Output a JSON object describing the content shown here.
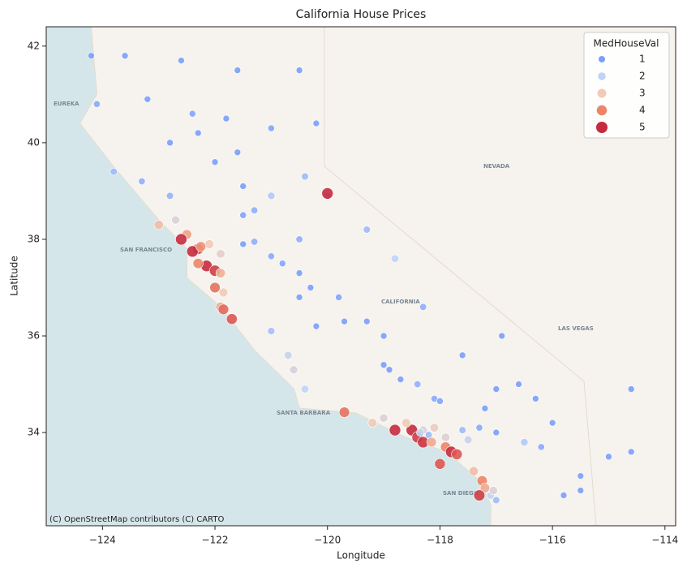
{
  "chart_data": {
    "type": "scatter",
    "title": "California House Prices",
    "x_label": "Longitude",
    "y_label": "Latitude",
    "xlim": [
      -125.0,
      -113.81
    ],
    "ylim": [
      32.07,
      42.4
    ],
    "xticks": [
      {
        "value": -124,
        "label": "−124"
      },
      {
        "value": -122,
        "label": "−122"
      },
      {
        "value": -120,
        "label": "−120"
      },
      {
        "value": -118,
        "label": "−118"
      },
      {
        "value": -116,
        "label": "−116"
      },
      {
        "value": -114,
        "label": "−114"
      }
    ],
    "yticks": [
      34,
      36,
      38,
      40,
      42
    ],
    "legend_title": "MedHouseVal",
    "legend_position": "upper right",
    "hue_legend": [
      1,
      2,
      3,
      4,
      5
    ],
    "hue_colors": [
      "#7b9ff9",
      "#c0d4f5",
      "#f2cbb7",
      "#ee8468",
      "#c62c3f"
    ],
    "attribution": "(C) OpenStreetMap contributors (C) CARTO",
    "map_labels": [
      "EUREKA",
      "NEVADA",
      "SAN FRANCISCO",
      "CALIFORNIA",
      "LAS VEGAS",
      "SANTA BARBARA",
      "SAN DIEGO"
    ],
    "series": [
      {
        "name": "MedHouseVal",
        "x": [
          -124.1,
          -123.8,
          -123.6,
          -124.2,
          -123.2,
          -122.4,
          -122.3,
          -121.6,
          -122.0,
          -121.5,
          -121.3,
          -121.5,
          -121.0,
          -120.4,
          -120.0,
          -120.0,
          -122.8,
          -122.7,
          -122.5,
          -122.3,
          -122.4,
          -122.15,
          -122.0,
          -121.9,
          -121.85,
          -121.9,
          -121.85,
          -121.7,
          -122.1,
          -122.3,
          -121.9,
          -121.3,
          -121.0,
          -120.5,
          -119.8,
          -119.7,
          -119.3,
          -119.0,
          -118.9,
          -120.6,
          -120.7,
          -120.4,
          -119.7,
          -119.2,
          -118.8,
          -118.5,
          -118.4,
          -118.3,
          -118.3,
          -118.2,
          -118.1,
          -117.9,
          -117.8,
          -117.7,
          -117.4,
          -117.25,
          -117.2,
          -117.1,
          -117.0,
          -117.3,
          -117.3,
          -117.0,
          -116.5,
          -116.2,
          -115.5,
          -115.0,
          -114.6,
          -114.6,
          -116.0,
          -117.0,
          -118.1,
          -117.6,
          -118.4,
          -116.9,
          -118.3,
          -118.8,
          -119.3,
          -120.5,
          -121.0,
          -120.2,
          -120.5,
          -123.3,
          -122.6,
          -121.6,
          -120.5,
          -120.2,
          -121.0,
          -121.8,
          -122.8,
          -123.0,
          -122.6,
          -122.25,
          -118.35,
          -118.15,
          -117.9,
          -117.6,
          -116.6,
          -119.0,
          -118.6,
          -117.5,
          -117.05,
          -118.0,
          -116.3,
          -117.2,
          -115.5,
          -115.8,
          -118.0,
          -121.5,
          -120.8,
          -122.0,
          -120.3,
          -119.0,
          -118.7
        ],
        "y": [
          40.8,
          39.4,
          41.8,
          41.8,
          40.9,
          40.6,
          40.2,
          39.8,
          39.6,
          39.1,
          38.6,
          38.5,
          38.9,
          39.3,
          38.9,
          38.95,
          38.9,
          38.4,
          38.1,
          37.8,
          37.75,
          37.45,
          37.35,
          37.3,
          36.9,
          36.6,
          36.55,
          36.35,
          37.9,
          37.5,
          37.7,
          37.95,
          37.65,
          37.3,
          36.8,
          36.3,
          36.3,
          35.4,
          35.3,
          35.3,
          35.6,
          34.9,
          34.42,
          34.2,
          34.05,
          34.05,
          33.9,
          33.8,
          34.05,
          33.95,
          34.1,
          33.7,
          33.6,
          33.55,
          33.2,
          33.0,
          32.85,
          32.7,
          32.6,
          32.7,
          34.1,
          34.0,
          33.8,
          33.7,
          32.8,
          33.5,
          34.9,
          33.6,
          34.2,
          34.9,
          34.7,
          35.6,
          35.0,
          36.0,
          36.6,
          37.6,
          38.2,
          38.0,
          36.1,
          36.2,
          36.8,
          39.2,
          41.7,
          41.5,
          41.5,
          40.4,
          40.3,
          40.5,
          40.0,
          38.3,
          38.0,
          37.85,
          34.0,
          33.8,
          33.9,
          34.05,
          35.0,
          34.3,
          34.2,
          33.85,
          32.8,
          34.65,
          34.7,
          34.5,
          33.1,
          32.7,
          33.35,
          37.9,
          37.5,
          37.0,
          37.0,
          36.0,
          35.1
        ],
        "values": [
          1.2,
          1.5,
          1.0,
          1.0,
          0.9,
          1.1,
          0.9,
          0.9,
          0.8,
          1.0,
          1.3,
          1.1,
          1.8,
          1.5,
          1.4,
          5.0,
          1.4,
          2.5,
          3.6,
          4.6,
          5.0,
          5.0,
          4.8,
          3.4,
          3.0,
          3.5,
          4.3,
          4.5,
          3.0,
          4.0,
          2.7,
          1.3,
          1.2,
          1.0,
          1.1,
          0.9,
          0.8,
          0.9,
          1.0,
          2.4,
          2.2,
          2.0,
          4.2,
          3.0,
          5.0,
          5.0,
          4.8,
          4.9,
          2.5,
          1.5,
          2.8,
          4.0,
          5.0,
          4.5,
          3.2,
          4.0,
          3.5,
          2.0,
          1.5,
          4.8,
          1.2,
          1.0,
          1.8,
          1.2,
          0.8,
          0.6,
          0.7,
          0.6,
          0.9,
          0.8,
          1.2,
          0.8,
          1.3,
          0.7,
          1.3,
          2.0,
          1.5,
          1.3,
          1.6,
          0.9,
          1.0,
          1.3,
          1.0,
          0.8,
          0.7,
          0.8,
          1.1,
          1.0,
          1.0,
          3.2,
          5.0,
          3.8,
          2.0,
          3.5,
          2.6,
          1.5,
          0.7,
          2.5,
          3.0,
          2.2,
          2.5,
          1.1,
          0.7,
          1.0,
          0.7,
          0.8,
          4.5,
          1.0,
          1.1,
          4.2,
          0.9,
          0.9,
          1.0
        ]
      }
    ]
  }
}
